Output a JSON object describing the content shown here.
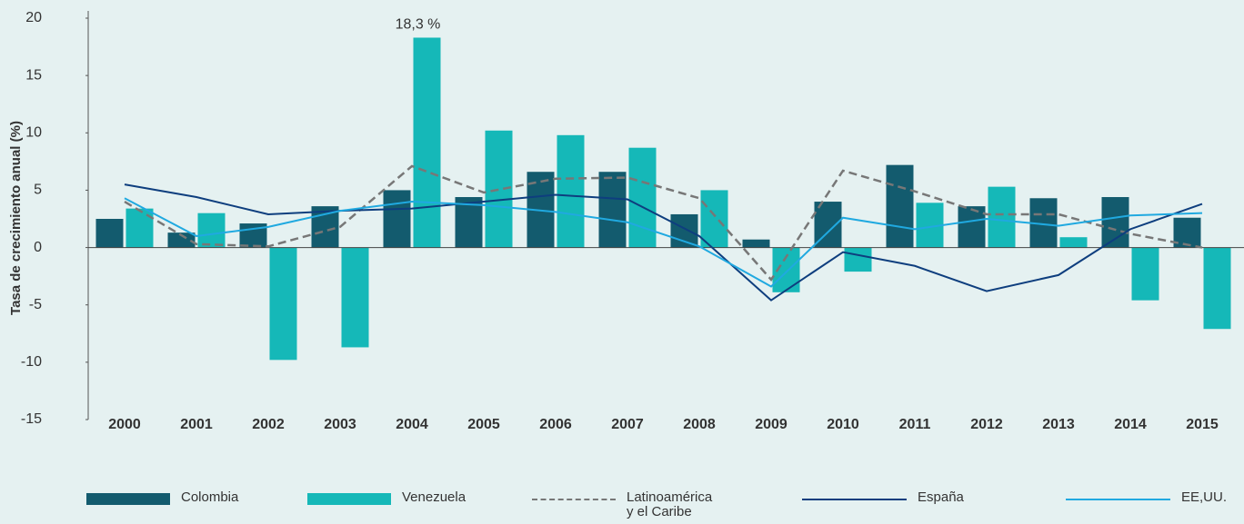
{
  "chart_data": {
    "type": "bar_line",
    "y_label": "Tasa de crecimiento anual (%)",
    "categories": [
      "2000",
      "2001",
      "2002",
      "2003",
      "2004",
      "2005",
      "2006",
      "2007",
      "2008",
      "2009",
      "2010",
      "2011",
      "2012",
      "2013",
      "2014",
      "2015"
    ],
    "ylim": [
      -15,
      20
    ],
    "yticks": [
      -15,
      -10,
      -5,
      0,
      5,
      10,
      15,
      20
    ],
    "series": [
      {
        "name": "Colombia",
        "kind": "bar",
        "color": "#135b6e",
        "values": [
          2.5,
          1.3,
          2.1,
          3.6,
          5.0,
          4.4,
          6.6,
          6.6,
          2.9,
          0.7,
          4.0,
          7.2,
          3.6,
          4.3,
          4.4,
          2.6
        ]
      },
      {
        "name": "Venezuela",
        "kind": "bar",
        "color": "#15b8b8",
        "values": [
          3.4,
          3.0,
          -9.8,
          -8.7,
          18.3,
          10.2,
          9.8,
          8.7,
          5.0,
          -3.9,
          -2.1,
          3.9,
          5.3,
          0.9,
          -4.6,
          -7.1
        ],
        "value_labels": [
          null,
          null,
          null,
          null,
          "18,3 %",
          null,
          null,
          null,
          null,
          null,
          null,
          null,
          null,
          null,
          null,
          null
        ]
      },
      {
        "name": "Latinoamérica y el Caribe",
        "kind": "line",
        "dashed": true,
        "color": "#777777",
        "values": [
          4.0,
          0.3,
          0.1,
          1.8,
          7.1,
          4.8,
          6.0,
          6.1,
          4.3,
          -2.8,
          6.7,
          4.9,
          2.9,
          2.9,
          1.2,
          0.0
        ]
      },
      {
        "name": "España",
        "kind": "line",
        "color": "#0e3e7e",
        "values": [
          5.5,
          4.4,
          2.9,
          3.2,
          3.4,
          4.0,
          4.6,
          4.2,
          1.0,
          -4.6,
          -0.4,
          -1.6,
          -3.8,
          -2.4,
          1.6,
          3.8
        ]
      },
      {
        "name": "EE,UU.",
        "kind": "line",
        "color": "#20a9e0",
        "values": [
          4.3,
          1.0,
          1.8,
          3.2,
          4.0,
          3.7,
          3.1,
          2.2,
          0.1,
          -3.4,
          2.6,
          1.6,
          2.5,
          1.9,
          2.8,
          3.0
        ]
      }
    ]
  }
}
